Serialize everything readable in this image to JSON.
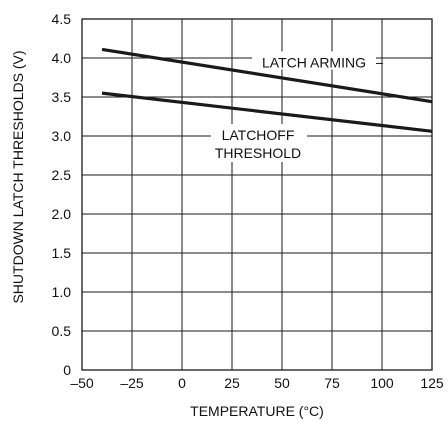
{
  "chart_data": {
    "type": "line",
    "title": "",
    "xlabel": "TEMPERATURE (°C)",
    "ylabel": "SHUTDOWN LATCH THRESHOLDS (V)",
    "xlim": [
      -50,
      125
    ],
    "ylim": [
      0,
      4.5
    ],
    "x_ticks": [
      -50,
      -25,
      0,
      25,
      50,
      75,
      100,
      125
    ],
    "y_ticks": [
      0,
      0.5,
      1.0,
      1.5,
      2.0,
      2.5,
      3.0,
      3.5,
      4.0,
      4.5
    ],
    "x_tick_labels": [
      "–50",
      "–25",
      "0",
      "25",
      "50",
      "75",
      "100",
      "125"
    ],
    "y_tick_labels": [
      "0",
      "0.5",
      "1.0",
      "1.5",
      "2.0",
      "2.5",
      "3.0",
      "3.5",
      "4.0",
      "4.5"
    ],
    "grid": true,
    "legend": "none",
    "series": [
      {
        "label": "LATCH ARMING",
        "x": [
          -40,
          125
        ],
        "y": [
          4.11,
          3.44
        ]
      },
      {
        "label_lines": [
          "LATCHOFF",
          "THRESHOLD"
        ],
        "x": [
          -40,
          125
        ],
        "y": [
          3.55,
          3.06
        ]
      }
    ],
    "colors": {
      "line": "#1a1a1a",
      "grid": "#1a1a1a",
      "background": "#ffffff"
    }
  }
}
